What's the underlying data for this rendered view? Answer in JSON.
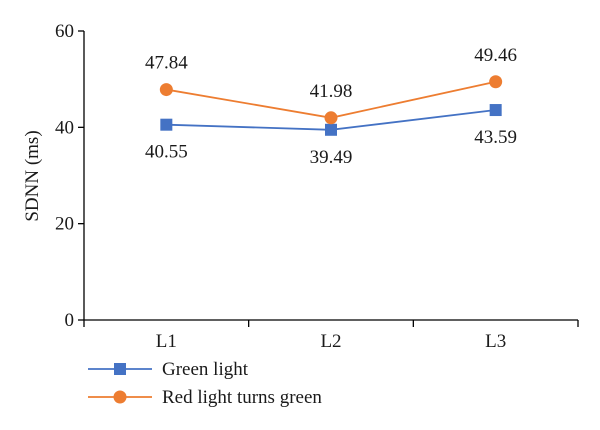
{
  "chart_data": {
    "type": "line",
    "categories": [
      "L1",
      "L2",
      "L3"
    ],
    "xlabel": "",
    "ylabel": "SDNN (ms)",
    "ylim": [
      0,
      60
    ],
    "yticks": [
      0,
      20,
      40,
      60
    ],
    "grid": false,
    "legend_position": "bottom-left",
    "series": [
      {
        "name": "Green light",
        "values": [
          40.55,
          39.49,
          43.59
        ],
        "labels": [
          "40.55",
          "39.49",
          "43.59"
        ],
        "label_position": "below",
        "color": "#4472c4",
        "marker": "square"
      },
      {
        "name": "Red light turns green",
        "values": [
          47.84,
          41.98,
          49.46
        ],
        "labels": [
          "47.84",
          "41.98",
          "49.46"
        ],
        "label_position": "above",
        "color": "#ed7d31",
        "marker": "circle"
      }
    ]
  }
}
